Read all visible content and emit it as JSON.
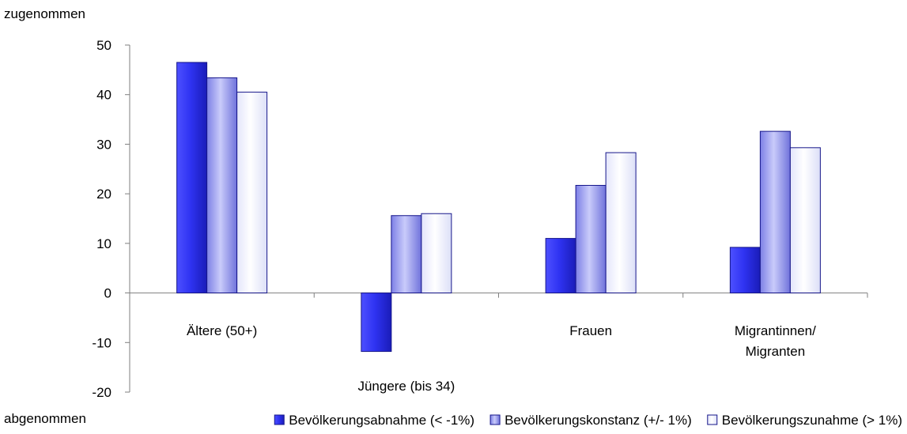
{
  "chart_data": {
    "type": "bar",
    "top_note": "zugenommen",
    "bottom_note": "abgenommen",
    "categories": [
      {
        "lines": [
          "Ältere (50+)"
        ]
      },
      {
        "lines": [
          "Jüngere (bis 34)"
        ]
      },
      {
        "lines": [
          "Frauen"
        ]
      },
      {
        "lines": [
          "Migrantinnen/",
          "Migranten"
        ]
      }
    ],
    "series": [
      {
        "name": "Bevölkerungsabnahme (< -1%)",
        "values": [
          46.5,
          -11.8,
          11.0,
          9.2
        ],
        "color": "#2a2ee8"
      },
      {
        "name": "Bevölkerungskonstanz (+/- 1%)",
        "values": [
          43.4,
          15.6,
          21.7,
          32.6
        ],
        "color": "#9a9cf0"
      },
      {
        "name": "Bevölkerungszunahme (> 1%)",
        "values": [
          40.5,
          16.0,
          28.3,
          29.3
        ],
        "color": "#eef0fc"
      }
    ],
    "yticks": [
      50,
      40,
      30,
      20,
      10,
      0,
      -10,
      -20
    ],
    "ylim": [
      -20,
      50
    ],
    "legend": "bottom"
  }
}
